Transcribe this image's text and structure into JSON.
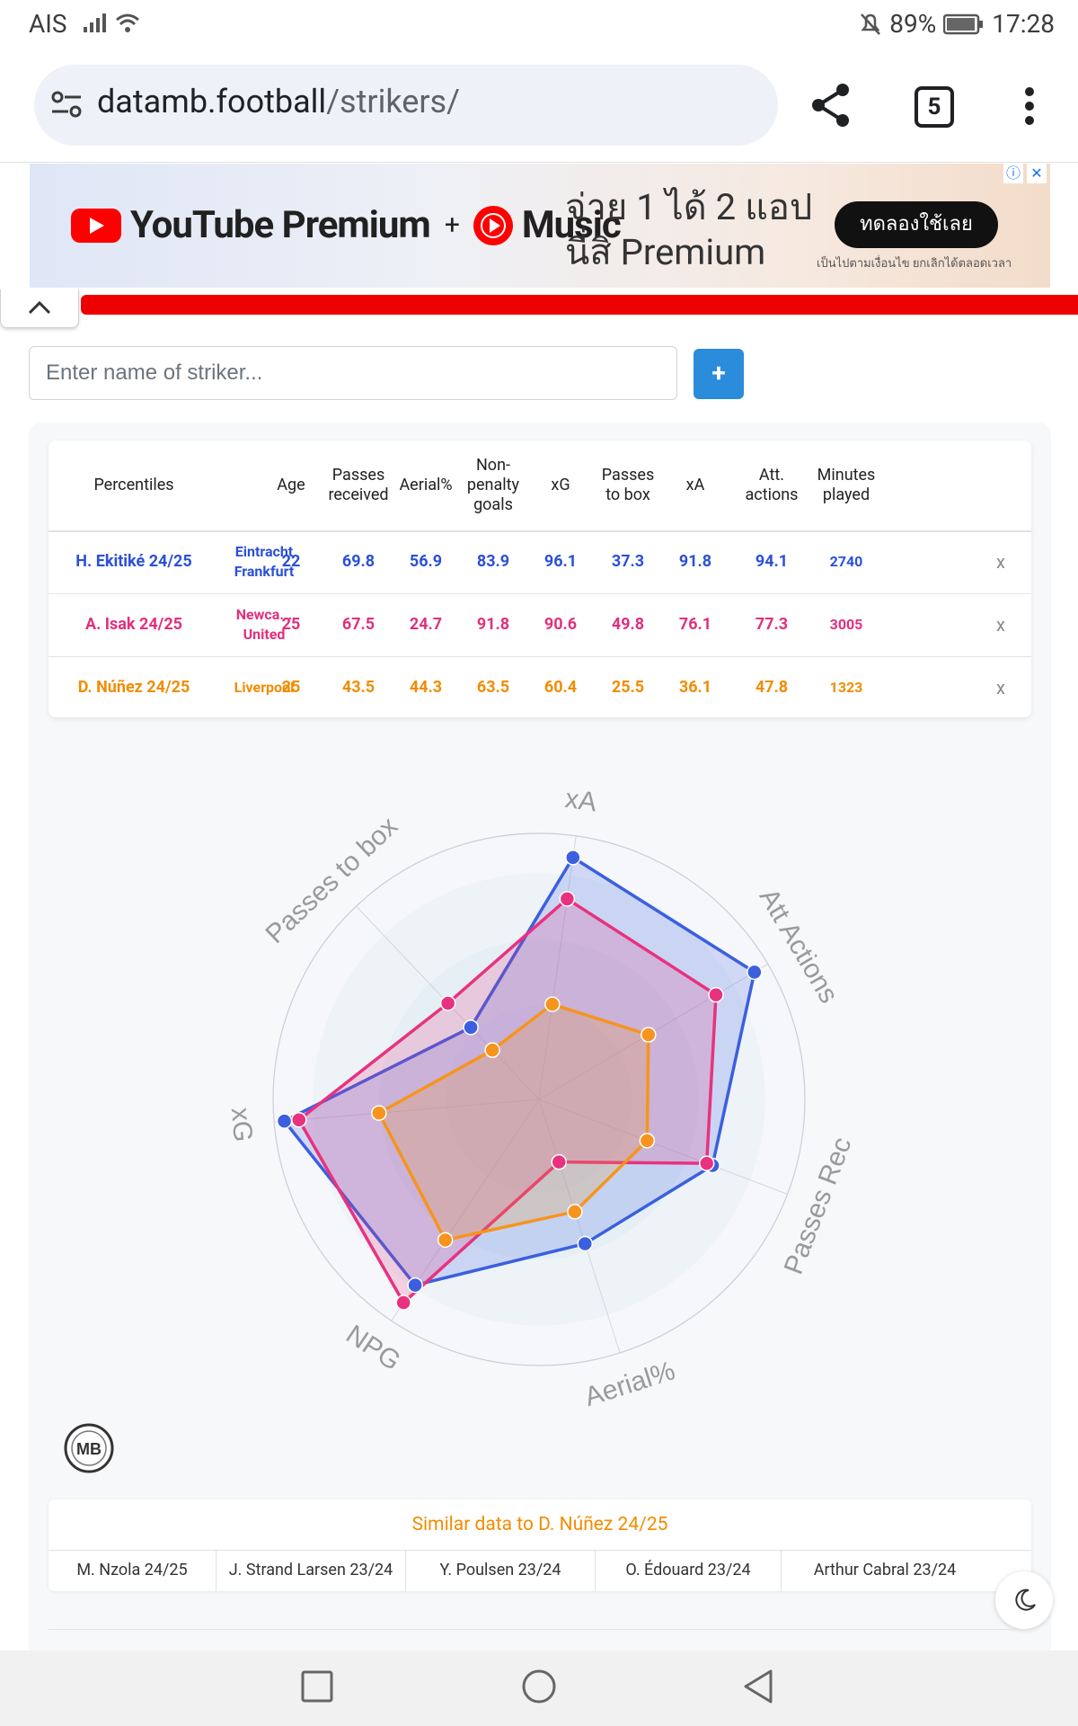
{
  "status": {
    "carrier": "AIS",
    "battery": "89%",
    "time": "17:28"
  },
  "browser": {
    "url_host": "datamb.football",
    "url_path": "/strikers/",
    "tab_count": "5"
  },
  "ad": {
    "brand": "YouTube Premium",
    "plus": "+",
    "music": "Music",
    "headline_1": "จ่าย 1 ได้ 2 แอป",
    "headline_2": "นี่สิ Premium",
    "cta": "ทดลองใช้เลย",
    "fine_print": "เป็นไปตามเงื่อนไข ยกเลิกได้ตลอดเวลา"
  },
  "search": {
    "placeholder": "Enter name of striker...",
    "add_label": "+"
  },
  "table": {
    "headers": [
      "Percentiles",
      "Age",
      "Passes received",
      "Aerial%",
      "Non-penalty goals",
      "xG",
      "Passes to box",
      "xA",
      "Att. actions",
      "Minutes played"
    ],
    "header_lines": {
      "passes_received": [
        "Passes",
        "received"
      ],
      "npg": [
        "Non-",
        "penalty",
        "goals"
      ],
      "passes_box": [
        "Passes",
        "to box"
      ],
      "att": [
        "Att.",
        "actions"
      ],
      "minutes": [
        "Minutes",
        "played"
      ]
    },
    "rows": [
      {
        "player": "H. Ekitiké 24/25",
        "club_lines": [
          "Eintracht",
          "Frankfurt"
        ],
        "age": "22",
        "passes_received": "69.8",
        "aerial": "56.9",
        "npg": "83.9",
        "xg": "96.1",
        "passes_box": "37.3",
        "xa": "91.8",
        "att_actions": "94.1",
        "minutes": "2740",
        "remove": "x",
        "color": "#2b50d8"
      },
      {
        "player": "A. Isak 24/25",
        "club_lines": [
          "Newca...",
          "United"
        ],
        "age": "25",
        "passes_received": "67.5",
        "aerial": "24.7",
        "npg": "91.8",
        "xg": "90.6",
        "passes_box": "49.8",
        "xa": "76.1",
        "att_actions": "77.3",
        "minutes": "3005",
        "remove": "x",
        "color": "#e0307e"
      },
      {
        "player": "D. Núñez 24/25",
        "club_lines": [
          "Liverpool"
        ],
        "age": "25",
        "passes_received": "43.5",
        "aerial": "44.3",
        "npg": "63.5",
        "xg": "60.4",
        "passes_box": "25.5",
        "xa": "36.1",
        "att_actions": "47.8",
        "minutes": "1323",
        "remove": "x",
        "color": "#f28c00"
      }
    ]
  },
  "chart_data": {
    "type": "radar",
    "axes": [
      "xA",
      "Att Actions",
      "Passes Rec",
      "Aerial%",
      "NPG",
      "xG",
      "Passes to box"
    ],
    "range": [
      0,
      100
    ],
    "series": [
      {
        "name": "H. Ekitiké 24/25",
        "color": "#3b5fe0",
        "values": [
          91.8,
          94.1,
          69.8,
          56.9,
          83.9,
          96.1,
          37.3
        ]
      },
      {
        "name": "A. Isak 24/25",
        "color": "#e8327f",
        "values": [
          76.1,
          77.3,
          67.5,
          24.7,
          91.8,
          90.6,
          49.8
        ]
      },
      {
        "name": "D. Núñez 24/25",
        "color": "#f7941d",
        "values": [
          36.1,
          47.8,
          43.5,
          44.3,
          63.5,
          60.4,
          25.5
        ]
      }
    ]
  },
  "logo_text": "MB",
  "similar": {
    "title": "Similar data to D. Núñez 24/25",
    "players": [
      "M. Nzola 24/25",
      "J. Strand Larsen 23/24",
      "Y. Poulsen 23/24",
      "O. Édouard 23/24",
      "Arthur Cabral 23/24"
    ]
  }
}
